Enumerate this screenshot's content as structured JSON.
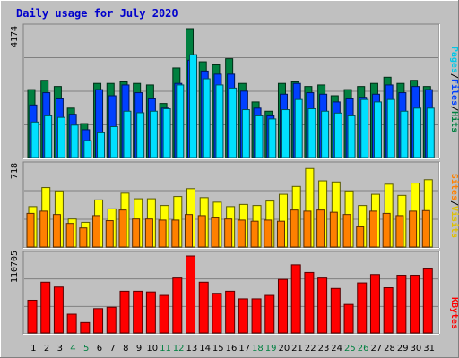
{
  "title": "Daily usage for July 2020",
  "colors": {
    "background": "#c0c0c0",
    "title": "#0000cc",
    "grid": "#808080",
    "hits": "#008040",
    "files": "#0040ff",
    "pages": "#00e0ff",
    "visits": "#ffff00",
    "sites": "#ff8000",
    "kbytes": "#ff0000",
    "weekend_label": "#008040",
    "weekday_label": "#000000"
  },
  "chart_data": [
    {
      "type": "bar",
      "panel": "hits-files-pages",
      "ymax_label": "4174",
      "ylim": [
        0,
        4174
      ],
      "legend": [
        "Pages",
        "Files",
        "Hits"
      ],
      "categories": [
        "1",
        "2",
        "3",
        "4",
        "5",
        "6",
        "7",
        "8",
        "9",
        "10",
        "11",
        "12",
        "13",
        "14",
        "15",
        "16",
        "17",
        "18",
        "19",
        "20",
        "21",
        "22",
        "23",
        "24",
        "25",
        "26",
        "27",
        "28",
        "29",
        "30",
        "31"
      ],
      "weekend_days": [
        "4",
        "5",
        "11",
        "12",
        "18",
        "19",
        "25",
        "26"
      ],
      "series": [
        {
          "name": "Hits",
          "values": [
            2200,
            2500,
            2300,
            1600,
            1100,
            2400,
            2400,
            2450,
            2400,
            2350,
            1750,
            2900,
            4174,
            3100,
            3000,
            3200,
            2400,
            1800,
            1500,
            2400,
            2450,
            2300,
            2350,
            2000,
            2200,
            2300,
            2400,
            2600,
            2400,
            2500,
            2300
          ]
        },
        {
          "name": "Files",
          "values": [
            1700,
            2100,
            1900,
            1400,
            900,
            2200,
            2000,
            2350,
            2100,
            1900,
            1600,
            2400,
            3150,
            2800,
            2700,
            2700,
            2150,
            1600,
            1350,
            2050,
            2400,
            2100,
            2050,
            1800,
            1900,
            1950,
            2050,
            2350,
            2100,
            2300,
            2200
          ]
        },
        {
          "name": "Pages",
          "values": [
            1150,
            1350,
            1300,
            1050,
            550,
            800,
            1000,
            1500,
            1450,
            1500,
            1580,
            2350,
            3330,
            2550,
            2350,
            2250,
            1550,
            1350,
            1250,
            1550,
            1880,
            1580,
            1500,
            1440,
            1350,
            1880,
            1800,
            1880,
            1500,
            1600,
            1600
          ]
        }
      ]
    },
    {
      "type": "bar",
      "panel": "visits-sites",
      "ymax_label": "718",
      "ylim": [
        0,
        718
      ],
      "legend": [
        "Sites",
        "Visits"
      ],
      "categories": [
        "1",
        "2",
        "3",
        "4",
        "5",
        "6",
        "7",
        "8",
        "9",
        "10",
        "11",
        "12",
        "13",
        "14",
        "15",
        "16",
        "17",
        "18",
        "19",
        "20",
        "21",
        "22",
        "23",
        "24",
        "25",
        "26",
        "27",
        "28",
        "29",
        "30",
        "31"
      ],
      "series": [
        {
          "name": "Visits",
          "values": [
            360,
            530,
            500,
            250,
            220,
            420,
            340,
            480,
            430,
            430,
            370,
            450,
            520,
            440,
            400,
            360,
            380,
            370,
            410,
            470,
            540,
            700,
            590,
            580,
            500,
            370,
            470,
            560,
            460,
            570,
            600
          ]
        },
        {
          "name": "Sites",
          "values": [
            300,
            320,
            290,
            210,
            170,
            280,
            235,
            330,
            250,
            250,
            240,
            240,
            290,
            280,
            260,
            250,
            240,
            230,
            240,
            230,
            330,
            320,
            330,
            310,
            290,
            180,
            320,
            300,
            280,
            320,
            325
          ]
        }
      ]
    },
    {
      "type": "bar",
      "panel": "kbytes",
      "ymax_label": "110705",
      "ylim": [
        0,
        110705
      ],
      "legend": [
        "KBytes"
      ],
      "categories": [
        "1",
        "2",
        "3",
        "4",
        "5",
        "6",
        "7",
        "8",
        "9",
        "10",
        "11",
        "12",
        "13",
        "14",
        "15",
        "16",
        "17",
        "18",
        "19",
        "20",
        "21",
        "22",
        "23",
        "24",
        "25",
        "26",
        "27",
        "28",
        "29",
        "30",
        "31"
      ],
      "series": [
        {
          "name": "KBytes",
          "values": [
            47000,
            73000,
            66000,
            27000,
            15000,
            35000,
            37000,
            60000,
            60000,
            59000,
            54000,
            79000,
            110705,
            73000,
            57000,
            60000,
            49000,
            49000,
            54000,
            77000,
            98000,
            87000,
            79000,
            64000,
            41000,
            72000,
            84000,
            65000,
            83000,
            83000,
            92000
          ]
        }
      ]
    }
  ],
  "x_labels": [
    "1",
    "2",
    "3",
    "4",
    "5",
    "6",
    "7",
    "8",
    "9",
    "10",
    "11",
    "12",
    "13",
    "14",
    "15",
    "16",
    "17",
    "18",
    "19",
    "20",
    "21",
    "22",
    "23",
    "24",
    "25",
    "26",
    "27",
    "28",
    "29",
    "30",
    "31"
  ],
  "side_labels": {
    "pages": "Pages",
    "files": "Files",
    "hits": "Hits",
    "sites": "Sites",
    "visits": "Visits",
    "kbytes": "KBytes",
    "slash": "/"
  }
}
